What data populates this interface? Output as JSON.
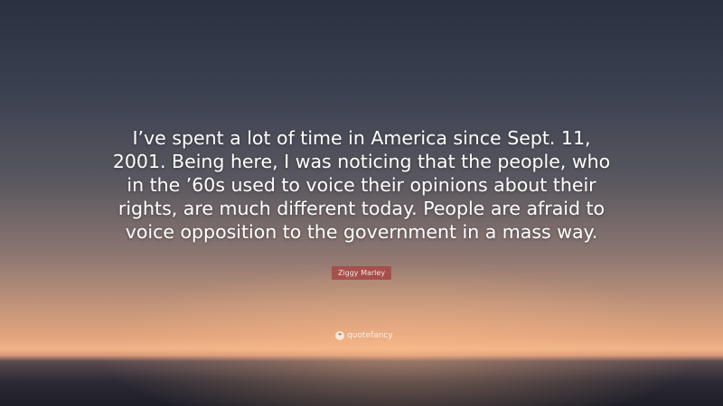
{
  "quote": {
    "text": "I’ve spent a lot of time in America since Sept. 11, 2001. Being here, I was noticing that the people, who in the ’60s used to voice their opinions about their rights, are much different today. People are afraid to voice opposition to the government in a mass way.",
    "author": "Ziggy Marley"
  },
  "brand": {
    "name": "quotefancy",
    "icon": "quote-mark-icon"
  },
  "colors": {
    "author_badge": "#a5504c",
    "sky_top": "#2a3040",
    "horizon": "#f0b488"
  }
}
